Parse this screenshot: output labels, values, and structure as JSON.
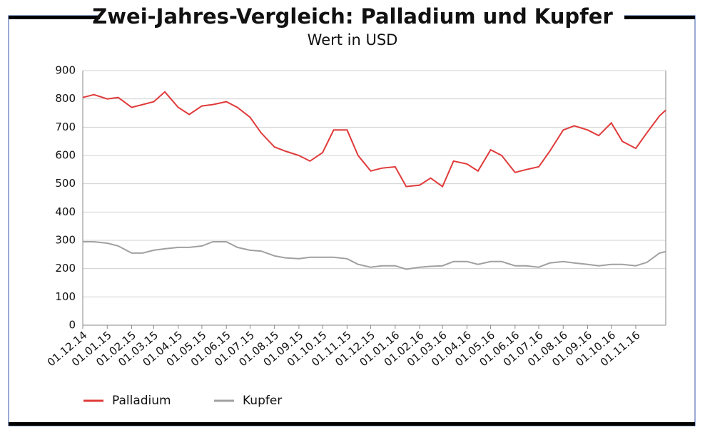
{
  "chart_data": {
    "type": "line",
    "title": "Zwei-Jahres-Vergleich: Palladium und Kupfer",
    "subtitle": "Wert in USD",
    "x": [
      "01.12.14",
      "15.12.14",
      "01.01.15",
      "15.01.15",
      "01.02.15",
      "15.02.15",
      "01.03.15",
      "15.03.15",
      "01.04.15",
      "15.04.15",
      "01.05.15",
      "15.05.15",
      "01.06.15",
      "15.06.15",
      "01.07.15",
      "15.07.15",
      "01.08.15",
      "15.08.15",
      "01.09.15",
      "15.09.15",
      "01.10.15",
      "15.10.15",
      "01.11.15",
      "15.11.15",
      "01.12.15",
      "15.12.15",
      "01.01.16",
      "15.01.16",
      "01.02.16",
      "15.02.16",
      "01.03.16",
      "15.03.16",
      "01.04.16",
      "15.04.16",
      "01.05.16",
      "15.05.16",
      "01.06.16",
      "15.06.16",
      "01.07.16",
      "15.07.16",
      "01.08.16",
      "15.08.16",
      "01.09.16",
      "15.09.16",
      "01.10.16",
      "15.10.16",
      "01.11.16",
      "15.11.16",
      "01.12.16",
      "09.12.16"
    ],
    "series": [
      {
        "name": "Palladium",
        "color": "#e03a3a",
        "values": [
          805,
          815,
          800,
          805,
          770,
          780,
          790,
          825,
          770,
          745,
          775,
          780,
          790,
          770,
          735,
          680,
          630,
          615,
          600,
          580,
          610,
          690,
          690,
          600,
          545,
          555,
          560,
          490,
          495,
          520,
          490,
          580,
          570,
          545,
          620,
          600,
          540,
          550,
          560,
          615,
          690,
          705,
          690,
          670,
          715,
          650,
          625,
          680,
          740,
          760
        ]
      },
      {
        "name": "Kupfer",
        "color": "#a0a0a0",
        "values": [
          295,
          295,
          290,
          280,
          255,
          255,
          265,
          270,
          275,
          275,
          280,
          295,
          295,
          275,
          265,
          262,
          245,
          238,
          235,
          240,
          240,
          240,
          235,
          215,
          205,
          210,
          210,
          198,
          205,
          208,
          210,
          225,
          225,
          215,
          225,
          225,
          210,
          210,
          205,
          220,
          225,
          220,
          215,
          210,
          215,
          215,
          210,
          222,
          255,
          260
        ]
      }
    ],
    "xlim": [
      "01.12.14",
      "09.12.16"
    ],
    "xticks": [
      "01.12.14",
      "01.01.15",
      "01.02.15",
      "01.03.15",
      "01.04.15",
      "01.05.15",
      "01.06.15",
      "01.07.15",
      "01.08.15",
      "01.09.15",
      "01.10.15",
      "01.11.15",
      "01.12.15",
      "01.01.16",
      "01.02.16",
      "01.03.16",
      "01.04.16",
      "01.05.16",
      "01.06.16",
      "01.07.16",
      "01.08.16",
      "01.09.16",
      "01.10.16",
      "01.11.16"
    ],
    "ylim": [
      0,
      900
    ],
    "yticks": [
      0,
      100,
      200,
      300,
      400,
      500,
      600,
      700,
      800,
      900
    ],
    "grid": true,
    "legend": "bottom"
  }
}
